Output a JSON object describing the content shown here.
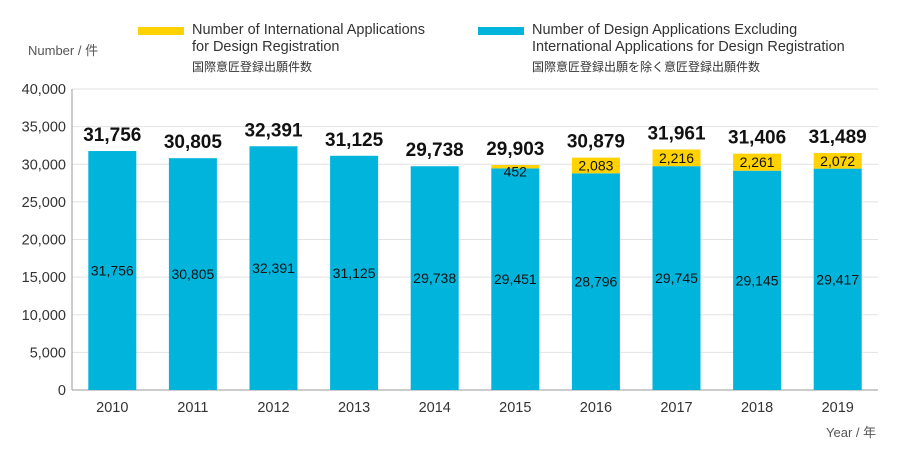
{
  "chart_data": {
    "type": "bar",
    "stacked": true,
    "categories": [
      "2010",
      "2011",
      "2012",
      "2013",
      "2014",
      "2015",
      "2016",
      "2017",
      "2018",
      "2019"
    ],
    "series": [
      {
        "name": "Number of Design Applications Excluding International  Applications for Design Registration",
        "name_line1": "Number of Design Applications Excluding",
        "name_line2": "International  Applications for Design Registration",
        "name_jp": "国際意匠登録出願を除く意匠登録出願件数",
        "color": "#00b4dc",
        "values": [
          31756,
          30805,
          32391,
          31125,
          29738,
          29451,
          28796,
          29745,
          29145,
          29417
        ],
        "labels": [
          "31,756",
          "30,805",
          "32,391",
          "31,125",
          "29,738",
          "29,451",
          "28,796",
          "29,745",
          "29,145",
          "29,417"
        ]
      },
      {
        "name": "Number of International Applications for Design Registration",
        "name_line1": "Number of International Applications",
        "name_line2": "for Design Registration",
        "name_jp": "国際意匠登録出願件数",
        "color": "#ffd200",
        "values": [
          0,
          0,
          0,
          0,
          0,
          452,
          2083,
          2216,
          2261,
          2072
        ],
        "labels": [
          "",
          "",
          "",
          "",
          "",
          "452",
          "2,083",
          "2,216",
          "2,261",
          "2,072"
        ]
      }
    ],
    "totals": [
      31756,
      30805,
      32391,
      31125,
      29738,
      29903,
      30879,
      31961,
      31406,
      31489
    ],
    "total_labels": [
      "31,756",
      "30,805",
      "32,391",
      "31,125",
      "29,738",
      "29,903",
      "30,879",
      "31,961",
      "31,406",
      "31,489"
    ],
    "ylabel": "Number / 件",
    "xlabel": "Year / 年",
    "ylim": [
      0,
      40000
    ],
    "yticks": [
      0,
      5000,
      10000,
      15000,
      20000,
      25000,
      30000,
      35000,
      40000
    ],
    "ytick_labels": [
      "0",
      "5,000",
      "10,000",
      "15,000",
      "20,000",
      "25,000",
      "30,000",
      "35,000",
      "40,000"
    ],
    "grid": true,
    "legend_position": "top"
  }
}
